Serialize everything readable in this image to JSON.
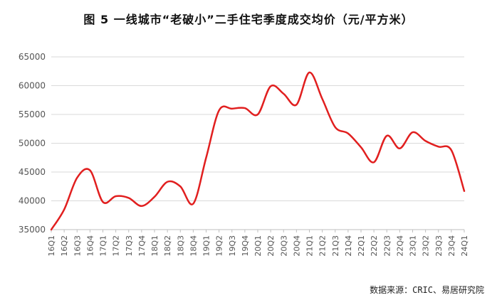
{
  "title": "图 5    一线城市“老破小”二手住宅季度成交均价（元/平方米）",
  "source": "数据来源：CRIC、易居研究院",
  "chart_data": {
    "type": "line",
    "title": "图 5    一线城市“老破小”二手住宅季度成交均价（元/平方米）",
    "xlabel": "",
    "ylabel": "",
    "ylim": [
      35000,
      65000
    ],
    "yticks": [
      35000,
      40000,
      45000,
      50000,
      55000,
      60000,
      65000
    ],
    "grid": "horizontal",
    "legend": "none",
    "line_color": "#e11f1f",
    "categories": [
      "16Q1",
      "16Q2",
      "16Q3",
      "16Q4",
      "17Q1",
      "17Q2",
      "17Q3",
      "17Q4",
      "18Q1",
      "18Q2",
      "18Q3",
      "18Q4",
      "19Q1",
      "19Q2",
      "19Q3",
      "19Q4",
      "20Q1",
      "20Q2",
      "20Q3",
      "20Q4",
      "21Q1",
      "21Q2",
      "21Q3",
      "21Q4",
      "22Q1",
      "22Q2",
      "22Q3",
      "22Q4",
      "23Q1",
      "23Q2",
      "23Q3",
      "23Q4",
      "24Q1"
    ],
    "values": [
      35000,
      38500,
      44000,
      45300,
      39800,
      40800,
      40500,
      39100,
      40700,
      43300,
      42500,
      39500,
      47500,
      55700,
      56000,
      56100,
      55000,
      59900,
      58600,
      56700,
      62300,
      57700,
      52800,
      51700,
      49300,
      46700,
      51300,
      49100,
      51900,
      50400,
      49400,
      48800,
      41700
    ]
  }
}
